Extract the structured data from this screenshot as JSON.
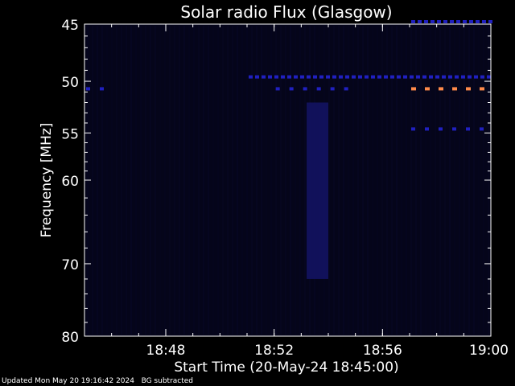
{
  "chart_data": {
    "type": "heatmap",
    "title": "Solar radio Flux (Glasgow)",
    "xlabel": "Start Time (20-May-24 18:45:00)",
    "ylabel_prefix": "Frequency ",
    "ylabel_unit": "MHz",
    "x_range_minutes": [
      "18:45",
      "19:00"
    ],
    "x_ticks": [
      "18:48",
      "18:52",
      "18:56",
      "19:00"
    ],
    "y_ticks": [
      "45",
      "50",
      "55",
      "60",
      "70",
      "80"
    ],
    "y_range_mhz": [
      45,
      80
    ],
    "y_scale": "log",
    "colors": {
      "background": "#000000",
      "plot_bg": "#05051a",
      "interference_low": "#2020c0",
      "interference_high": "#ff8a4a",
      "burst": "#141466"
    },
    "features": [
      {
        "kind": "dashed-line",
        "freq_mhz": 49.6,
        "from": "18:51",
        "to": "19:00",
        "color": "interference_low"
      },
      {
        "kind": "dashed-line",
        "freq_mhz": 50.7,
        "from": "18:45",
        "to": "18:46",
        "color": "interference_low"
      },
      {
        "kind": "dashed-line",
        "freq_mhz": 50.7,
        "from": "18:52",
        "to": "18:55",
        "color": "interference_low"
      },
      {
        "kind": "dashed-line",
        "freq_mhz": 50.7,
        "from": "18:57",
        "to": "19:00",
        "color": "interference_high"
      },
      {
        "kind": "dashed-line",
        "freq_mhz": 54.6,
        "from": "18:57",
        "to": "19:00",
        "color": "interference_low"
      },
      {
        "kind": "dashed-line",
        "freq_mhz": 44.8,
        "from": "18:57",
        "to": "19:00",
        "color": "interference_low"
      },
      {
        "kind": "band",
        "freq_from": 52,
        "freq_to": 72,
        "from": "18:53.2",
        "to": "18:54",
        "color": "burst"
      }
    ]
  },
  "footer": {
    "updated": "Updated Mon May 20 19:16:42 2024",
    "note": "BG subtracted"
  }
}
